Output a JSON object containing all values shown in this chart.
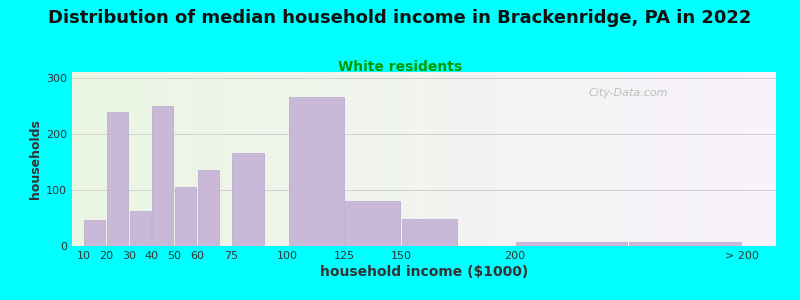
{
  "title": "Distribution of median household income in Brackenridge, PA in 2022",
  "subtitle": "White residents",
  "xlabel": "household income ($1000)",
  "ylabel": "households",
  "background_color": "#00FFFF",
  "plot_bg_left": "#eaf5e2",
  "plot_bg_right": "#f8f2fc",
  "bar_color": "#c9b8d8",
  "bar_edge_color": "#b8a8cc",
  "title_fontsize": 13,
  "subtitle_fontsize": 10,
  "subtitle_color": "#009900",
  "xlabel_fontsize": 10,
  "ylabel_fontsize": 9,
  "values": [
    47,
    238,
    63,
    250,
    105,
    135,
    165,
    265,
    80,
    48,
    8,
    8
  ],
  "bar_lefts": [
    10,
    20,
    30,
    40,
    50,
    60,
    75,
    100,
    125,
    150,
    200,
    250
  ],
  "bar_widths": [
    10,
    10,
    10,
    10,
    10,
    10,
    15,
    25,
    25,
    25,
    50,
    50
  ],
  "ylim": [
    0,
    310
  ],
  "yticks": [
    0,
    100,
    200,
    300
  ],
  "xlim": [
    5,
    315
  ],
  "tick_positions": [
    10,
    20,
    30,
    40,
    50,
    60,
    75,
    100,
    125,
    150,
    200,
    300
  ],
  "tick_labels": [
    "10",
    "20",
    "30",
    "40",
    "50",
    "60",
    "75",
    "100",
    "125",
    "150",
    "200",
    "> 200"
  ],
  "watermark": "City-Data.com"
}
